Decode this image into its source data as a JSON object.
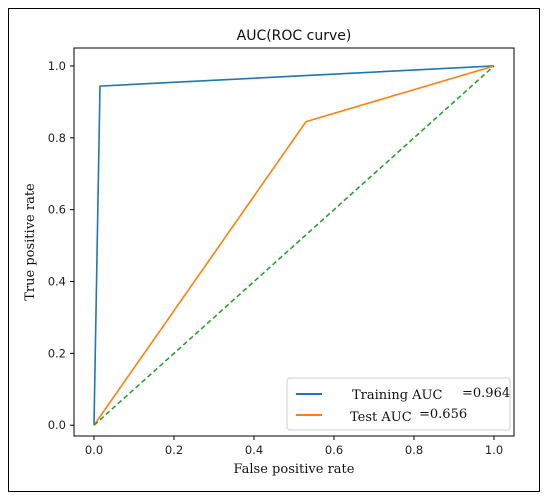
{
  "chart_data": {
    "type": "line",
    "title": "AUC(ROC curve)",
    "xlabel": "False positive rate",
    "ylabel": "True positive rate",
    "xlim": [
      -0.05,
      1.05
    ],
    "ylim": [
      -0.03,
      1.05
    ],
    "xticks": [
      0.0,
      0.2,
      0.4,
      0.6,
      0.8,
      1.0
    ],
    "yticks": [
      0.0,
      0.2,
      0.4,
      0.6,
      0.8,
      1.0
    ],
    "xtick_labels": [
      "0.0",
      "0.2",
      "0.4",
      "0.6",
      "0.8",
      "1.0"
    ],
    "ytick_labels": [
      "0.0",
      "0.2",
      "0.4",
      "0.6",
      "0.8",
      "1.0"
    ],
    "grid": false,
    "legend_position": "bottom-right",
    "series": [
      {
        "name": "Training AUC",
        "legend_value": "=0.964",
        "color": "#1f77b4",
        "style": "solid",
        "x": [
          0.0,
          0.015,
          1.0
        ],
        "y": [
          0.0,
          0.944,
          1.0
        ]
      },
      {
        "name": "Test AUC",
        "legend_value": "=0.656",
        "color": "#ff7f0e",
        "style": "solid",
        "x": [
          0.0,
          0.53,
          1.0
        ],
        "y": [
          0.0,
          0.845,
          1.0
        ]
      },
      {
        "color": "#2ca02c",
        "style": "dashed",
        "x": [
          0.0,
          1.0
        ],
        "y": [
          0.0,
          1.0
        ]
      }
    ]
  }
}
